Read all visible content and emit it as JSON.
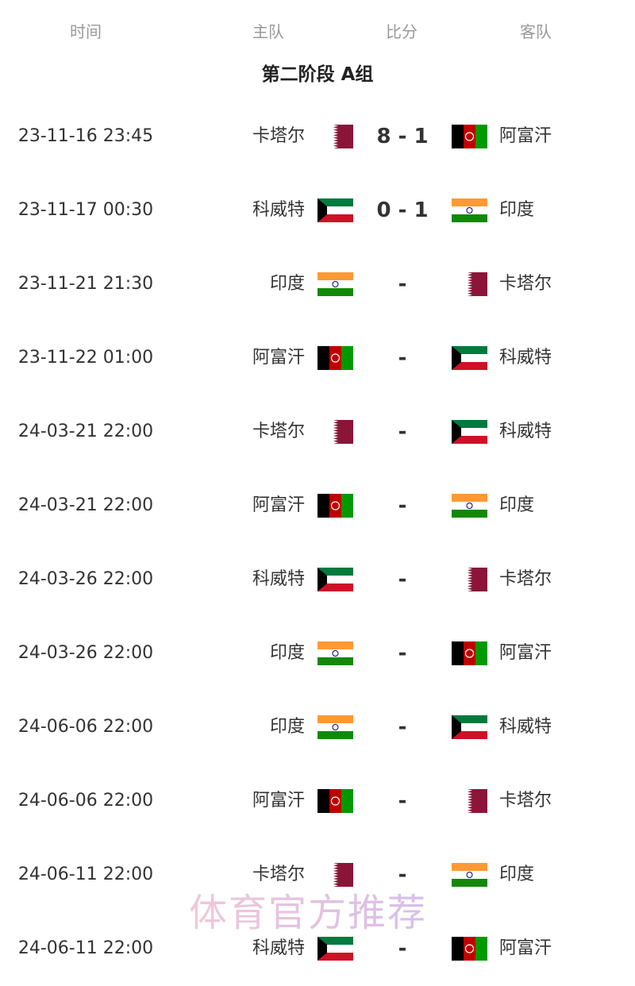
{
  "header": {
    "time": "时间",
    "home": "主队",
    "score": "比分",
    "away": "客队"
  },
  "stage_title": "第二阶段 A组",
  "flag_colors": {
    "qatar": "#8a1538",
    "afghanistan_red": "#be0000",
    "afghanistan_green": "#009900",
    "india_saffron": "#ff9933",
    "india_green": "#138808",
    "kuwait_green": "#007a3d",
    "kuwait_red": "#ce1126"
  },
  "matches": [
    {
      "time": "23-11-16 23:45",
      "home": "卡塔尔",
      "home_flag": "qatar",
      "score": "8 - 1",
      "away": "阿富汗",
      "away_flag": "afghanistan"
    },
    {
      "time": "23-11-17 00:30",
      "home": "科威特",
      "home_flag": "kuwait",
      "score": "0 - 1",
      "away": "印度",
      "away_flag": "india"
    },
    {
      "time": "23-11-21 21:30",
      "home": "印度",
      "home_flag": "india",
      "score": "-",
      "away": "卡塔尔",
      "away_flag": "qatar"
    },
    {
      "time": "23-11-22 01:00",
      "home": "阿富汗",
      "home_flag": "afghanistan",
      "score": "-",
      "away": "科威特",
      "away_flag": "kuwait"
    },
    {
      "time": "24-03-21 22:00",
      "home": "卡塔尔",
      "home_flag": "qatar",
      "score": "-",
      "away": "科威特",
      "away_flag": "kuwait"
    },
    {
      "time": "24-03-21 22:00",
      "home": "阿富汗",
      "home_flag": "afghanistan",
      "score": "-",
      "away": "印度",
      "away_flag": "india"
    },
    {
      "time": "24-03-26 22:00",
      "home": "科威特",
      "home_flag": "kuwait",
      "score": "-",
      "away": "卡塔尔",
      "away_flag": "qatar"
    },
    {
      "time": "24-03-26 22:00",
      "home": "印度",
      "home_flag": "india",
      "score": "-",
      "away": "阿富汗",
      "away_flag": "afghanistan"
    },
    {
      "time": "24-06-06 22:00",
      "home": "印度",
      "home_flag": "india",
      "score": "-",
      "away": "科威特",
      "away_flag": "kuwait"
    },
    {
      "time": "24-06-06 22:00",
      "home": "阿富汗",
      "home_flag": "afghanistan",
      "score": "-",
      "away": "卡塔尔",
      "away_flag": "qatar"
    },
    {
      "time": "24-06-11 22:00",
      "home": "卡塔尔",
      "home_flag": "qatar",
      "score": "-",
      "away": "印度",
      "away_flag": "india"
    },
    {
      "time": "24-06-11 22:00",
      "home": "科威特",
      "home_flag": "kuwait",
      "score": "-",
      "away": "阿富汗",
      "away_flag": "afghanistan"
    }
  ],
  "watermark": "体育官方推荐"
}
